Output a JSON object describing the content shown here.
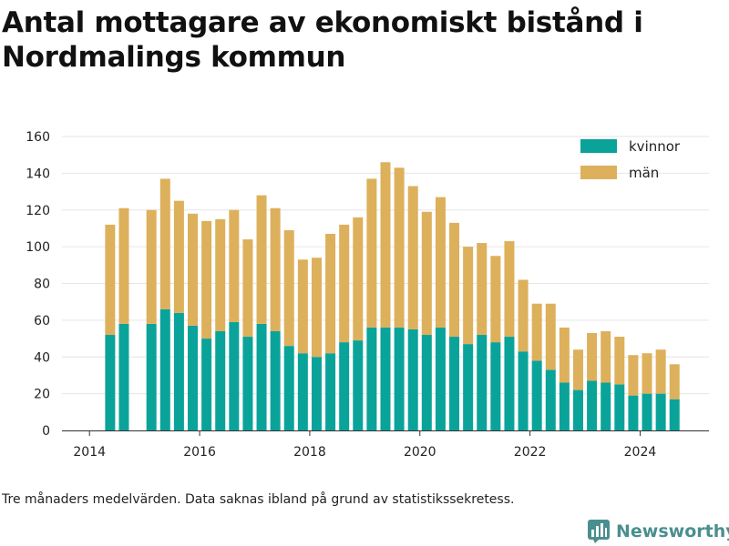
{
  "title": "Antal mottagare av ekonomiskt bistånd i Nordmalings kommun",
  "footnote": "Tre månaders medelvärden. Data saknas ibland på grund av statistikssekretess.",
  "brand": {
    "name": "Newsworthy",
    "icon": "newsworthy-bar-chart-icon",
    "color": "#4a8f8f"
  },
  "colors": {
    "kvinnor": "#0aa39a",
    "man": "#ddb05c",
    "grid": "#e6e6e6",
    "axis": "#333333"
  },
  "chart_data": {
    "type": "bar",
    "stacked": true,
    "x_axis": {
      "min": 2013.5,
      "max": 2025.25,
      "ticks": [
        2014,
        2016,
        2018,
        2020,
        2022,
        2024
      ]
    },
    "y_axis": {
      "min": 0,
      "max": 160,
      "ticks": [
        0,
        20,
        40,
        60,
        80,
        100,
        120,
        140,
        160
      ]
    },
    "grid": true,
    "legend": {
      "position": "top-right",
      "entries": [
        "kvinnor",
        "män"
      ]
    },
    "x": [
      2014.375,
      2014.625,
      2015.125,
      2015.375,
      2015.625,
      2015.875,
      2016.125,
      2016.375,
      2016.625,
      2016.875,
      2017.125,
      2017.375,
      2017.625,
      2017.875,
      2018.125,
      2018.375,
      2018.625,
      2018.875,
      2019.125,
      2019.375,
      2019.625,
      2019.875,
      2020.125,
      2020.375,
      2020.625,
      2020.875,
      2021.125,
      2021.375,
      2021.625,
      2021.875,
      2022.125,
      2022.375,
      2022.625,
      2022.875,
      2023.125,
      2023.375,
      2023.625,
      2023.875,
      2024.125,
      2024.375,
      2024.625
    ],
    "series": [
      {
        "name": "kvinnor",
        "values": [
          52,
          58,
          58,
          66,
          64,
          57,
          50,
          54,
          59,
          51,
          58,
          54,
          46,
          42,
          40,
          42,
          48,
          49,
          56,
          56,
          56,
          55,
          52,
          56,
          51,
          47,
          52,
          48,
          51,
          43,
          38,
          33,
          26,
          22,
          27,
          26,
          25,
          19,
          20,
          20,
          17
        ]
      },
      {
        "name": "män",
        "values": [
          60,
          63,
          62,
          71,
          61,
          61,
          64,
          61,
          61,
          53,
          70,
          67,
          63,
          51,
          54,
          65,
          64,
          67,
          81,
          90,
          87,
          78,
          67,
          71,
          62,
          53,
          50,
          47,
          52,
          39,
          31,
          36,
          30,
          22,
          26,
          28,
          26,
          22,
          22,
          24,
          19
        ]
      }
    ]
  }
}
